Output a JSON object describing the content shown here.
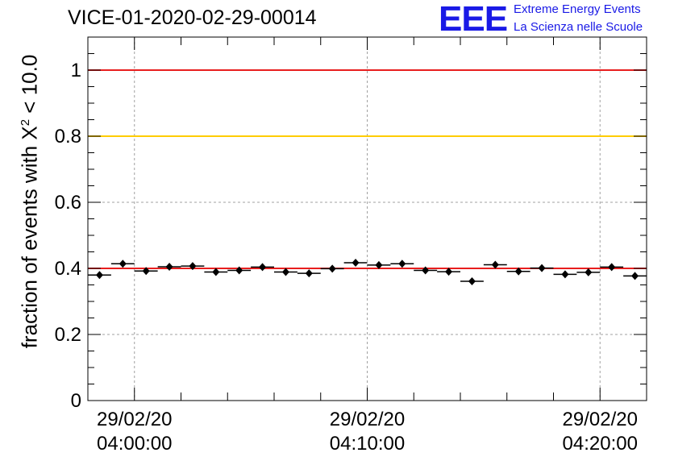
{
  "header": {
    "run_title": "VICE-01-2020-02-29-00014",
    "logo_text": "EEE",
    "logo_line1": "Extreme Energy Events",
    "logo_line2": "La Scienza nelle Scuole"
  },
  "chart_data": {
    "type": "scatter",
    "title": "VICE-01-2020-02-29-00014",
    "xlabel": "",
    "ylabel_prefix": "fraction of events with ",
    "ylabel_symbol": "X",
    "ylabel_sup": "2",
    "ylabel_suffix": " < 10.0",
    "ylim": [
      0,
      1.1
    ],
    "yticks": [
      "0",
      "0.2",
      "0.4",
      "0.6",
      "0.8",
      "1"
    ],
    "xlim_min": [
      -2,
      22
    ],
    "xticks": [
      {
        "date": "29/02/20",
        "time": "04:00:00",
        "minute": 0
      },
      {
        "date": "29/02/20",
        "time": "04:10:00",
        "minute": 10
      },
      {
        "date": "29/02/20",
        "time": "04:20:00",
        "minute": 20
      }
    ],
    "grid": true,
    "reference_lines": [
      {
        "value": 1.0,
        "color": "#e81e1e"
      },
      {
        "value": 0.8,
        "color": "#ffcc00"
      },
      {
        "value": 0.4,
        "color": "#e81e1e"
      }
    ],
    "bin_width_min": 1,
    "points": [
      {
        "x": -1.5,
        "y": 0.38
      },
      {
        "x": -0.5,
        "y": 0.414
      },
      {
        "x": 0.5,
        "y": 0.392
      },
      {
        "x": 1.5,
        "y": 0.405
      },
      {
        "x": 2.5,
        "y": 0.407
      },
      {
        "x": 3.5,
        "y": 0.389
      },
      {
        "x": 4.5,
        "y": 0.394
      },
      {
        "x": 5.5,
        "y": 0.404
      },
      {
        "x": 6.5,
        "y": 0.389
      },
      {
        "x": 7.5,
        "y": 0.385
      },
      {
        "x": 8.5,
        "y": 0.399
      },
      {
        "x": 9.5,
        "y": 0.417
      },
      {
        "x": 10.5,
        "y": 0.41
      },
      {
        "x": 11.5,
        "y": 0.414
      },
      {
        "x": 12.5,
        "y": 0.394
      },
      {
        "x": 13.5,
        "y": 0.39
      },
      {
        "x": 14.5,
        "y": 0.361
      },
      {
        "x": 15.5,
        "y": 0.411
      },
      {
        "x": 16.5,
        "y": 0.391
      },
      {
        "x": 17.5,
        "y": 0.401
      },
      {
        "x": 18.5,
        "y": 0.382
      },
      {
        "x": 19.5,
        "y": 0.388
      },
      {
        "x": 20.5,
        "y": 0.404
      },
      {
        "x": 21.5,
        "y": 0.377
      }
    ]
  }
}
